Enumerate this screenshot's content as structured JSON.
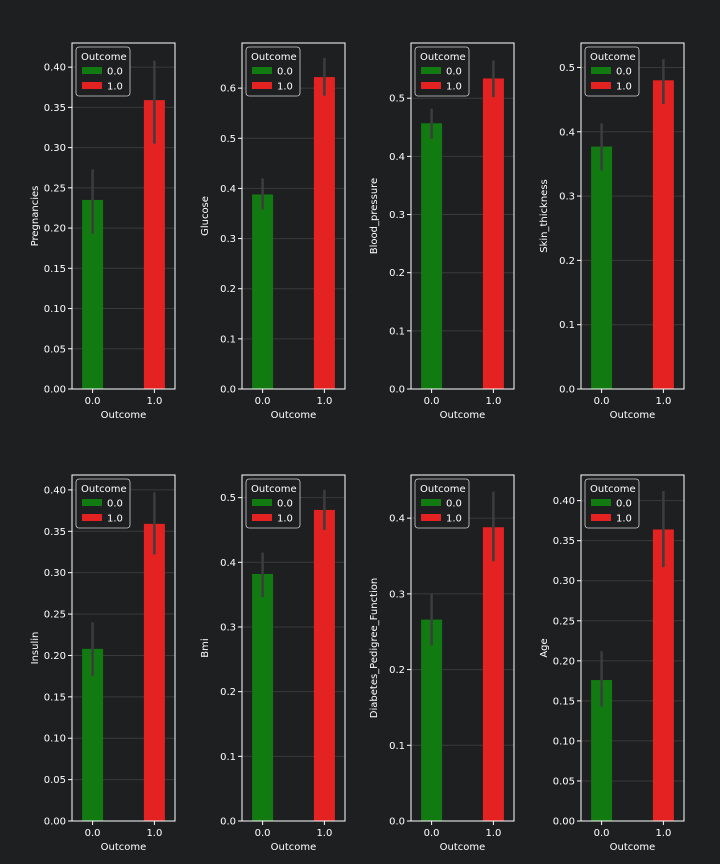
{
  "colors": {
    "background": "#1e1f21",
    "outcome_0": "#117a11",
    "outcome_1": "#e52222",
    "error_bar": "#3d3d3d",
    "axes": "#ffffff",
    "grid": "#3a3a3a"
  },
  "chart_data": [
    {
      "type": "bar",
      "xlabel": "Outcome",
      "ylabel": "Pregnancies",
      "categories": [
        "0.0",
        "1.0"
      ],
      "series": [
        {
          "name": "0.0",
          "category": "0.0",
          "value": 0.235,
          "ci": [
            0.193,
            0.273
          ]
        },
        {
          "name": "1.0",
          "category": "1.0",
          "value": 0.359,
          "ci": [
            0.305,
            0.408
          ]
        }
      ],
      "ylim": [
        0,
        0.43
      ],
      "yticks": [
        "0.00",
        "0.05",
        "0.10",
        "0.15",
        "0.20",
        "0.25",
        "0.30",
        "0.35",
        "0.40"
      ],
      "legend": {
        "title": "Outcome",
        "entries": [
          "0.0",
          "1.0"
        ],
        "placement": "upper-left"
      },
      "grid": true
    },
    {
      "type": "bar",
      "xlabel": "Outcome",
      "ylabel": "Glucose",
      "categories": [
        "0.0",
        "1.0"
      ],
      "series": [
        {
          "name": "0.0",
          "category": "0.0",
          "value": 0.388,
          "ci": [
            0.358,
            0.42
          ]
        },
        {
          "name": "1.0",
          "category": "1.0",
          "value": 0.622,
          "ci": [
            0.585,
            0.66
          ]
        }
      ],
      "ylim": [
        0,
        0.69
      ],
      "yticks": [
        "0.0",
        "0.1",
        "0.2",
        "0.3",
        "0.4",
        "0.5",
        "0.6"
      ],
      "legend": {
        "title": "Outcome",
        "entries": [
          "0.0",
          "1.0"
        ],
        "placement": "upper-left"
      },
      "grid": true
    },
    {
      "type": "bar",
      "xlabel": "Outcome",
      "ylabel": "Blood_pressure",
      "categories": [
        "0.0",
        "1.0"
      ],
      "series": [
        {
          "name": "0.0",
          "category": "0.0",
          "value": 0.457,
          "ci": [
            0.43,
            0.482
          ]
        },
        {
          "name": "1.0",
          "category": "1.0",
          "value": 0.534,
          "ci": [
            0.502,
            0.565
          ]
        }
      ],
      "ylim": [
        0,
        0.595
      ],
      "yticks": [
        "0.0",
        "0.1",
        "0.2",
        "0.3",
        "0.4",
        "0.5"
      ],
      "legend": {
        "title": "Outcome",
        "entries": [
          "0.0",
          "1.0"
        ],
        "placement": "upper-left"
      },
      "grid": true
    },
    {
      "type": "bar",
      "xlabel": "Outcome",
      "ylabel": "Skin_thickness",
      "categories": [
        "0.0",
        "1.0"
      ],
      "series": [
        {
          "name": "0.0",
          "category": "0.0",
          "value": 0.377,
          "ci": [
            0.34,
            0.413
          ]
        },
        {
          "name": "1.0",
          "category": "1.0",
          "value": 0.48,
          "ci": [
            0.443,
            0.513
          ]
        }
      ],
      "ylim": [
        0,
        0.538
      ],
      "yticks": [
        "0.0",
        "0.1",
        "0.2",
        "0.3",
        "0.4",
        "0.5"
      ],
      "legend": {
        "title": "Outcome",
        "entries": [
          "0.0",
          "1.0"
        ],
        "placement": "upper-left"
      },
      "grid": true
    },
    {
      "type": "bar",
      "xlabel": "Outcome",
      "ylabel": "Insulin",
      "categories": [
        "0.0",
        "1.0"
      ],
      "series": [
        {
          "name": "0.0",
          "category": "0.0",
          "value": 0.208,
          "ci": [
            0.175,
            0.24
          ]
        },
        {
          "name": "1.0",
          "category": "1.0",
          "value": 0.359,
          "ci": [
            0.322,
            0.397
          ]
        }
      ],
      "ylim": [
        0,
        0.418
      ],
      "yticks": [
        "0.00",
        "0.05",
        "0.10",
        "0.15",
        "0.20",
        "0.25",
        "0.30",
        "0.35",
        "0.40"
      ],
      "legend": {
        "title": "Outcome",
        "entries": [
          "0.0",
          "1.0"
        ],
        "placement": "upper-left"
      },
      "grid": true
    },
    {
      "type": "bar",
      "xlabel": "Outcome",
      "ylabel": "Bmi",
      "categories": [
        "0.0",
        "1.0"
      ],
      "series": [
        {
          "name": "0.0",
          "category": "0.0",
          "value": 0.382,
          "ci": [
            0.346,
            0.415
          ]
        },
        {
          "name": "1.0",
          "category": "1.0",
          "value": 0.481,
          "ci": [
            0.45,
            0.512
          ]
        }
      ],
      "ylim": [
        0,
        0.535
      ],
      "yticks": [
        "0.0",
        "0.1",
        "0.2",
        "0.3",
        "0.4",
        "0.5"
      ],
      "legend": {
        "title": "Outcome",
        "entries": [
          "0.0",
          "1.0"
        ],
        "placement": "upper-left"
      },
      "grid": true
    },
    {
      "type": "bar",
      "xlabel": "Outcome",
      "ylabel": "Diabetes_Pedigree_Function",
      "categories": [
        "0.0",
        "1.0"
      ],
      "series": [
        {
          "name": "0.0",
          "category": "0.0",
          "value": 0.266,
          "ci": [
            0.232,
            0.3
          ]
        },
        {
          "name": "1.0",
          "category": "1.0",
          "value": 0.388,
          "ci": [
            0.343,
            0.435
          ]
        }
      ],
      "ylim": [
        0,
        0.457
      ],
      "yticks": [
        "0.0",
        "0.1",
        "0.2",
        "0.3",
        "0.4"
      ],
      "legend": {
        "title": "Outcome",
        "entries": [
          "0.0",
          "1.0"
        ],
        "placement": "upper-left"
      },
      "grid": true
    },
    {
      "type": "bar",
      "xlabel": "Outcome",
      "ylabel": "Age",
      "categories": [
        "0.0",
        "1.0"
      ],
      "series": [
        {
          "name": "0.0",
          "category": "0.0",
          "value": 0.176,
          "ci": [
            0.143,
            0.212
          ]
        },
        {
          "name": "1.0",
          "category": "1.0",
          "value": 0.364,
          "ci": [
            0.317,
            0.412
          ]
        }
      ],
      "ylim": [
        0,
        0.432
      ],
      "yticks": [
        "0.00",
        "0.05",
        "0.10",
        "0.15",
        "0.20",
        "0.25",
        "0.30",
        "0.35",
        "0.40"
      ],
      "legend": {
        "title": "Outcome",
        "entries": [
          "0.0",
          "1.0"
        ],
        "placement": "upper-left"
      },
      "grid": true
    }
  ]
}
